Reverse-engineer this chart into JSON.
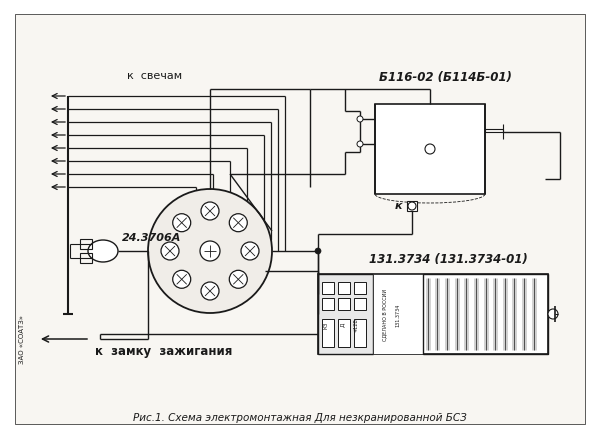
{
  "bg_color": "#f0ede8",
  "line_color": "#1a1a1a",
  "title_text": "Рис.1. Схема электромонтажная Для незкранированной БСЗ",
  "label_k_svecham": "к  свечам",
  "label_k_zamku": "к  замку  зажигания",
  "label_distributor": "24.3706А",
  "label_coil": "Б116-02 (Б114Б-01)",
  "label_module": "131.3734 (131.3734-01)",
  "label_k": "к",
  "label_zao": "ЗАО «СОАТЗ»",
  "figsize": [
    6.0,
    4.39
  ],
  "dpi": 100
}
